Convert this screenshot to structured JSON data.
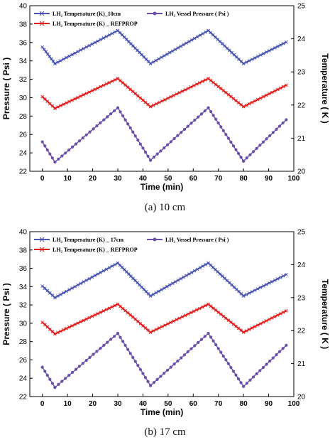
{
  "colors": {
    "temp_measured": "#4a55b0",
    "temp_refprop": "#e02020",
    "pressure": "#6b4fa8",
    "axis": "#000000"
  },
  "chart_data": [
    {
      "type": "line",
      "caption": "(a)  10  cm",
      "xlabel": "Time (min)",
      "ylabel": "Pressure ( Psi )",
      "y2label": "Temperature ( K )",
      "xlim": [
        -5,
        100
      ],
      "ylim": [
        22,
        40
      ],
      "y2lim": [
        20,
        25
      ],
      "xticks": [
        "0",
        "10",
        "20",
        "30",
        "40",
        "50",
        "60",
        "70",
        "80",
        "90",
        "100"
      ],
      "yticks": [
        "22",
        "24",
        "26",
        "28",
        "30",
        "32",
        "34",
        "36",
        "38",
        "40"
      ],
      "y2ticks": [
        "20",
        "21",
        "22",
        "23",
        "24",
        "25"
      ],
      "legend_position": "top",
      "series": [
        {
          "name": "LH₂ Temperature (K)_10cm",
          "axis": "right",
          "marker": "x",
          "color": "#4a55b0",
          "x": [
            0,
            5,
            30,
            43,
            66,
            80,
            97
          ],
          "y": [
            23.75,
            23.25,
            24.25,
            23.25,
            24.25,
            23.25,
            23.9
          ]
        },
        {
          "name": "LH₂ Temperature (K) _ REFPROP",
          "axis": "right",
          "marker": "x",
          "color": "#e02020",
          "x": [
            0,
            5,
            30,
            43,
            66,
            80,
            97
          ],
          "y": [
            22.25,
            21.9,
            22.8,
            21.95,
            22.8,
            21.95,
            22.6
          ]
        },
        {
          "name": "LH₂ Vessel Pressure ( Psi )",
          "axis": "left",
          "marker": "dot",
          "color": "#6b4fa8",
          "x": [
            0,
            5,
            30,
            43,
            66,
            80,
            97
          ],
          "y": [
            25.2,
            23.0,
            28.9,
            23.2,
            28.9,
            23.1,
            27.6
          ]
        }
      ]
    },
    {
      "type": "line",
      "caption": "(b)  17  cm",
      "xlabel": "Time (min)",
      "ylabel": "Pressure ( Psi )",
      "y2label": "Temperature ( K )",
      "xlim": [
        -5,
        100
      ],
      "ylim": [
        22,
        40
      ],
      "y2lim": [
        20,
        25
      ],
      "xticks": [
        "0",
        "10",
        "20",
        "30",
        "40",
        "50",
        "60",
        "70",
        "80",
        "90",
        "100"
      ],
      "yticks": [
        "22",
        "24",
        "26",
        "28",
        "30",
        "32",
        "34",
        "36",
        "38",
        "40"
      ],
      "y2ticks": [
        "20",
        "21",
        "22",
        "23",
        "24",
        "25"
      ],
      "legend_position": "top",
      "series": [
        {
          "name": "LH₂ Temperature (K) _ 17cm",
          "axis": "right",
          "marker": "x",
          "color": "#4a55b0",
          "x": [
            0,
            5,
            30,
            43,
            66,
            80,
            97
          ],
          "y": [
            23.35,
            23.0,
            24.05,
            23.05,
            24.05,
            23.05,
            23.7
          ]
        },
        {
          "name": "LH₂ Temperature (K) _ REFPROP",
          "axis": "right",
          "marker": "x",
          "color": "#e02020",
          "x": [
            0,
            5,
            30,
            43,
            66,
            80,
            97
          ],
          "y": [
            22.25,
            21.9,
            22.8,
            21.95,
            22.8,
            21.95,
            22.6
          ]
        },
        {
          "name": "LH₂ Vessel Pressure ( Psi )",
          "axis": "left",
          "marker": "dot",
          "color": "#6b4fa8",
          "x": [
            0,
            5,
            30,
            43,
            66,
            80,
            97
          ],
          "y": [
            25.2,
            23.0,
            28.9,
            23.2,
            28.9,
            23.1,
            27.6
          ]
        }
      ]
    }
  ]
}
